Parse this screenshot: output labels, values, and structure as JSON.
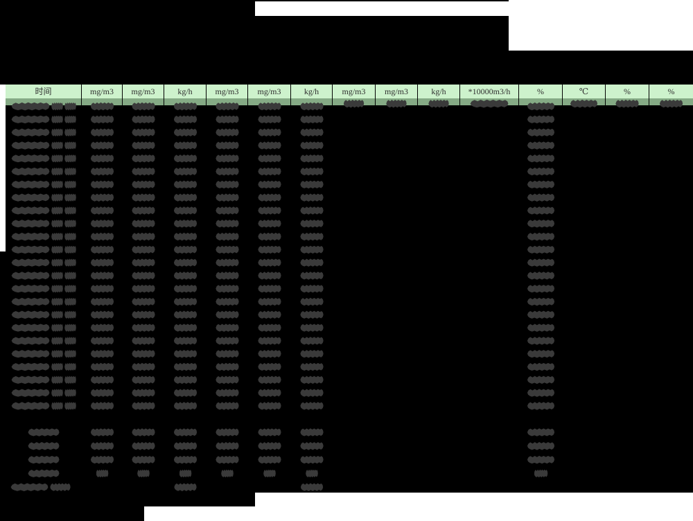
{
  "report": {
    "table": {
      "unit_headers": [
        "时间",
        "mg/m3",
        "mg/m3",
        "kg/h",
        "mg/m3",
        "mg/m3",
        "kg/h",
        "mg/m3",
        "mg/m3",
        "kg/h",
        "*10000m3/h",
        "%",
        "℃",
        "%",
        "%"
      ],
      "data_row_count": 24,
      "summary_row_count": 4,
      "columns_with_values_all_rows": [
        0,
        1,
        2,
        3,
        4,
        5,
        6,
        11
      ],
      "columns_with_values_first_row_only": [
        7,
        8,
        9,
        10,
        12,
        13,
        14
      ],
      "footer_row_value_columns": [
        3,
        6
      ],
      "content_redacted": true
    },
    "colors": {
      "background": "#000000",
      "page_white": "#ffffff",
      "header_fill": "#cdf2cc",
      "header_band_fill": "#85aa85",
      "header_text": "#2f2f2f",
      "redaction_blob": "#3a3a3a",
      "grid_border": "#000000"
    }
  }
}
